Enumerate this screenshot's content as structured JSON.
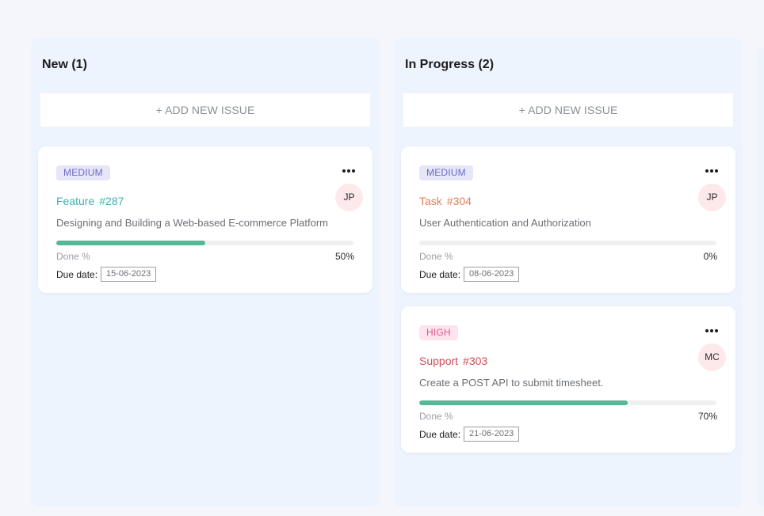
{
  "board": {
    "columns": [
      {
        "title": "New (1)",
        "add_button": "+ ADD NEW ISSUE",
        "cards": [
          {
            "priority": "MEDIUM",
            "type": "Feature",
            "number": "#287",
            "avatar": "JP",
            "description": "Designing and Building a Web-based E-commerce Platform",
            "progress": 0.5,
            "done_label": "Done %",
            "done_pct": "50%",
            "due_label": "Due date:",
            "due_date": "15-06-2023"
          }
        ]
      },
      {
        "title": "In Progress (2)",
        "add_button": "+ ADD NEW ISSUE",
        "cards": [
          {
            "priority": "MEDIUM",
            "type": "Task",
            "number": "#304",
            "avatar": "JP",
            "description": "User Authentication and Authorization",
            "progress": 0,
            "done_label": "Done %",
            "done_pct": "0%",
            "due_label": "Due date:",
            "due_date": "08-06-2023"
          },
          {
            "priority": "HIGH",
            "type": "Support",
            "number": "#303",
            "avatar": "MC",
            "description": "Create a POST API to submit timesheet.",
            "progress": 0.7,
            "done_label": "Done %",
            "done_pct": "70%",
            "due_label": "Due date:",
            "due_date": "21-06-2023"
          }
        ]
      }
    ]
  },
  "icons": {
    "card_menu": "more-horizontal-icon"
  },
  "colors": {
    "progress_fill": "#55b897",
    "priority_medium": "#6a6ac6",
    "priority_high": "#e0578a",
    "type_feature": "#3fb0ad",
    "type_task": "#e07f5c",
    "type_support": "#cf4b5d"
  }
}
